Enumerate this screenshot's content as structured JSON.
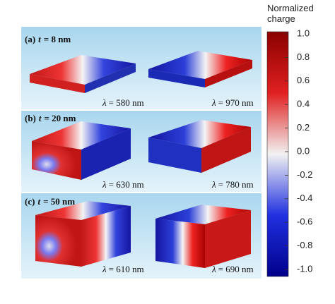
{
  "panels": [
    {
      "label": "(a)",
      "variable": "t",
      "value": "= 8 nm",
      "modes": [
        {
          "symbol": "λ",
          "value": "= 580 nm"
        },
        {
          "symbol": "λ",
          "value": "= 970 nm"
        }
      ]
    },
    {
      "label": "(b)",
      "variable": "t",
      "value": "= 20 nm",
      "modes": [
        {
          "symbol": "λ",
          "value": "= 630 nm"
        },
        {
          "symbol": "λ",
          "value": "= 780 nm"
        }
      ]
    },
    {
      "label": "(c)",
      "variable": "t",
      "value": "= 50 nm",
      "modes": [
        {
          "symbol": "λ",
          "value": "= 610 nm"
        },
        {
          "symbol": "λ",
          "value": "= 690 nm"
        }
      ]
    }
  ],
  "colorbar": {
    "title": "Normalized charge",
    "ylim": [
      -1,
      1
    ],
    "ticks": [
      {
        "value": 1,
        "label": "1.0"
      },
      0.8,
      0.6,
      0.4,
      0.2,
      {
        "value": 0,
        "label": "0.0"
      },
      -0.2,
      -0.4,
      -0.6,
      -0.8,
      {
        "value": -1,
        "label": "-1.0"
      }
    ]
  }
}
